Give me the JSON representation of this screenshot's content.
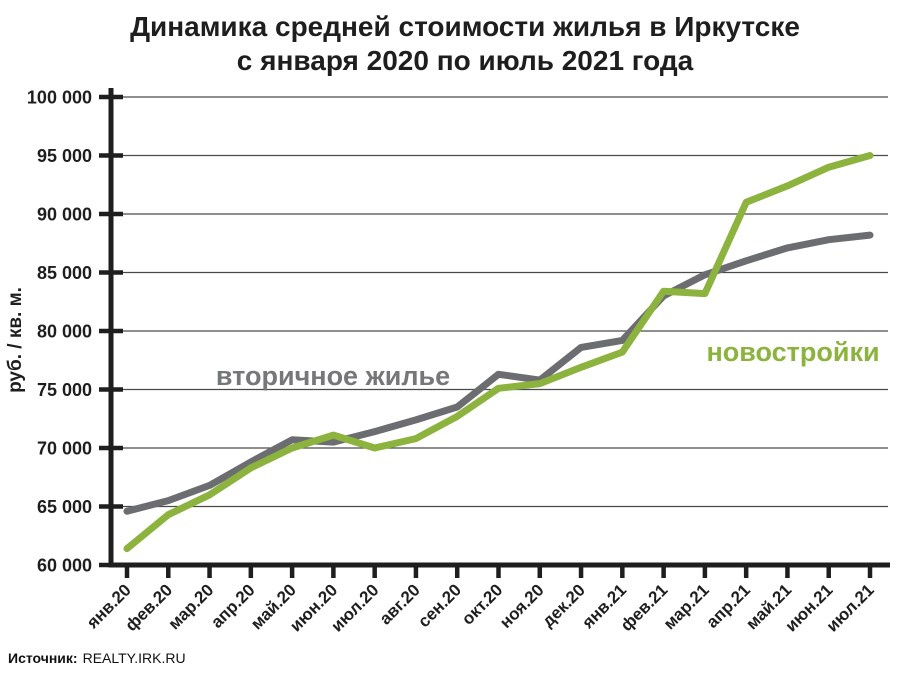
{
  "title": {
    "line1": "Динамика  средней стоимости жилья в Иркутске",
    "line2": "с января 2020 по июль 2021 года"
  },
  "source": {
    "label": "Источник:",
    "value": "REALTY.IRK.RU"
  },
  "colors": {
    "secondary_line": "#6C6D70",
    "secondary_label": "#76777A",
    "newbuild": "#8CB33D",
    "grid": "#4A4A4A",
    "axis": "#1E1E1E"
  },
  "chart_data": {
    "type": "line",
    "title": "Динамика средней стоимости жилья в Иркутске с января 2020 по июль 2021 года",
    "xlabel": "",
    "ylabel": "руб. / кв. м.",
    "ylim": [
      60000,
      100000
    ],
    "ytick_step": 5000,
    "grid": true,
    "legend_position": "inline-annotations",
    "categories": [
      "янв.20",
      "фев.20",
      "мар.20",
      "апр.20",
      "май.20",
      "июн.20",
      "июл.20",
      "авг.20",
      "сен.20",
      "окт.20",
      "ноя.20",
      "дек.20",
      "янв.21",
      "фев.21",
      "мар.21",
      "апр.21",
      "май.21",
      "июн.21",
      "июл.21"
    ],
    "series": [
      {
        "name": "вторичное жилье",
        "key": "secondary",
        "color": "#6C6D70",
        "values": [
          64600,
          65500,
          66800,
          68800,
          70700,
          70500,
          71400,
          72400,
          73500,
          76300,
          75800,
          78600,
          79200,
          83000,
          84800,
          86000,
          87100,
          87800,
          88200
        ]
      },
      {
        "name": "новостройки",
        "key": "newbuild",
        "color": "#8CB33D",
        "values": [
          61400,
          64300,
          66000,
          68300,
          70000,
          71100,
          70000,
          70800,
          72700,
          75100,
          75500,
          76900,
          78200,
          83400,
          83200,
          91000,
          92400,
          94000,
          95000
        ]
      }
    ],
    "annotations": [
      {
        "series": "вторичное жилье",
        "text": "вторичное жилье"
      },
      {
        "series": "новостройки",
        "text": "новостройки"
      }
    ]
  }
}
